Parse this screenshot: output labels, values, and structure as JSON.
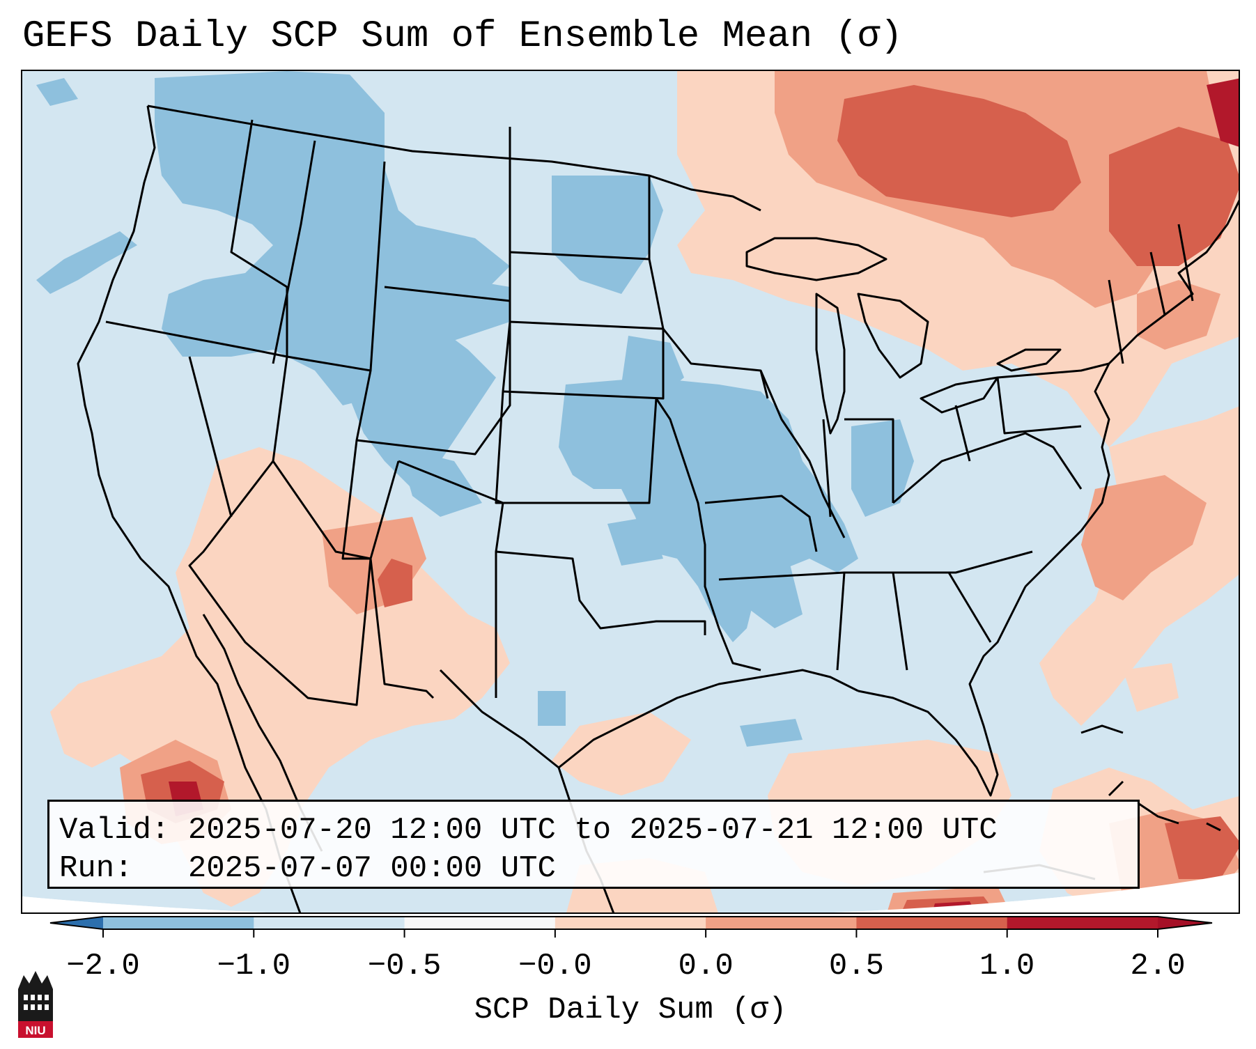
{
  "title": "GEFS Daily SCP Sum of Ensemble Mean (σ)",
  "info": {
    "valid_label": "Valid:",
    "valid_value": "2025-07-20 12:00 UTC to 2025-07-21 12:00 UTC",
    "run_label": "Run:",
    "run_value": "2025-07-07 00:00 UTC"
  },
  "colorbar": {
    "label": "SCP Daily Sum (σ)",
    "ticks": [
      "−2.0",
      "−1.0",
      "−0.5",
      "−0.0",
      "0.0",
      "0.5",
      "1.0",
      "2.0"
    ],
    "colors": [
      "#3d86c2",
      "#8ec0dd",
      "#d3e6f1",
      "#f7f7f7",
      "#fbd5c1",
      "#f0a186",
      "#d6604d",
      "#b2182b"
    ],
    "under_color": "#2c6fad",
    "over_color": "#a50f26"
  },
  "logo": {
    "text": "NIU",
    "icon": "niu-tower-icon"
  },
  "map": {
    "ocean_color": "#d3e6f1",
    "land_color": "#d3e6f1",
    "outside_color": "#ffffff",
    "field_regions": [
      {
        "name": "northern-rockies-negative",
        "level": "-1.0"
      },
      {
        "name": "central-plains-negative",
        "level": "-1.0"
      },
      {
        "name": "midwest-negative",
        "level": "-1.0"
      },
      {
        "name": "southwest-positive",
        "level": "0.5"
      },
      {
        "name": "canada-positive",
        "level": "1.0"
      },
      {
        "name": "new-england-positive",
        "level": "2.0"
      },
      {
        "name": "atlantic-positive",
        "level": "0.5"
      },
      {
        "name": "pacific-positive",
        "level": "1.0"
      },
      {
        "name": "caribbean-positive",
        "level": "1.0"
      }
    ]
  }
}
